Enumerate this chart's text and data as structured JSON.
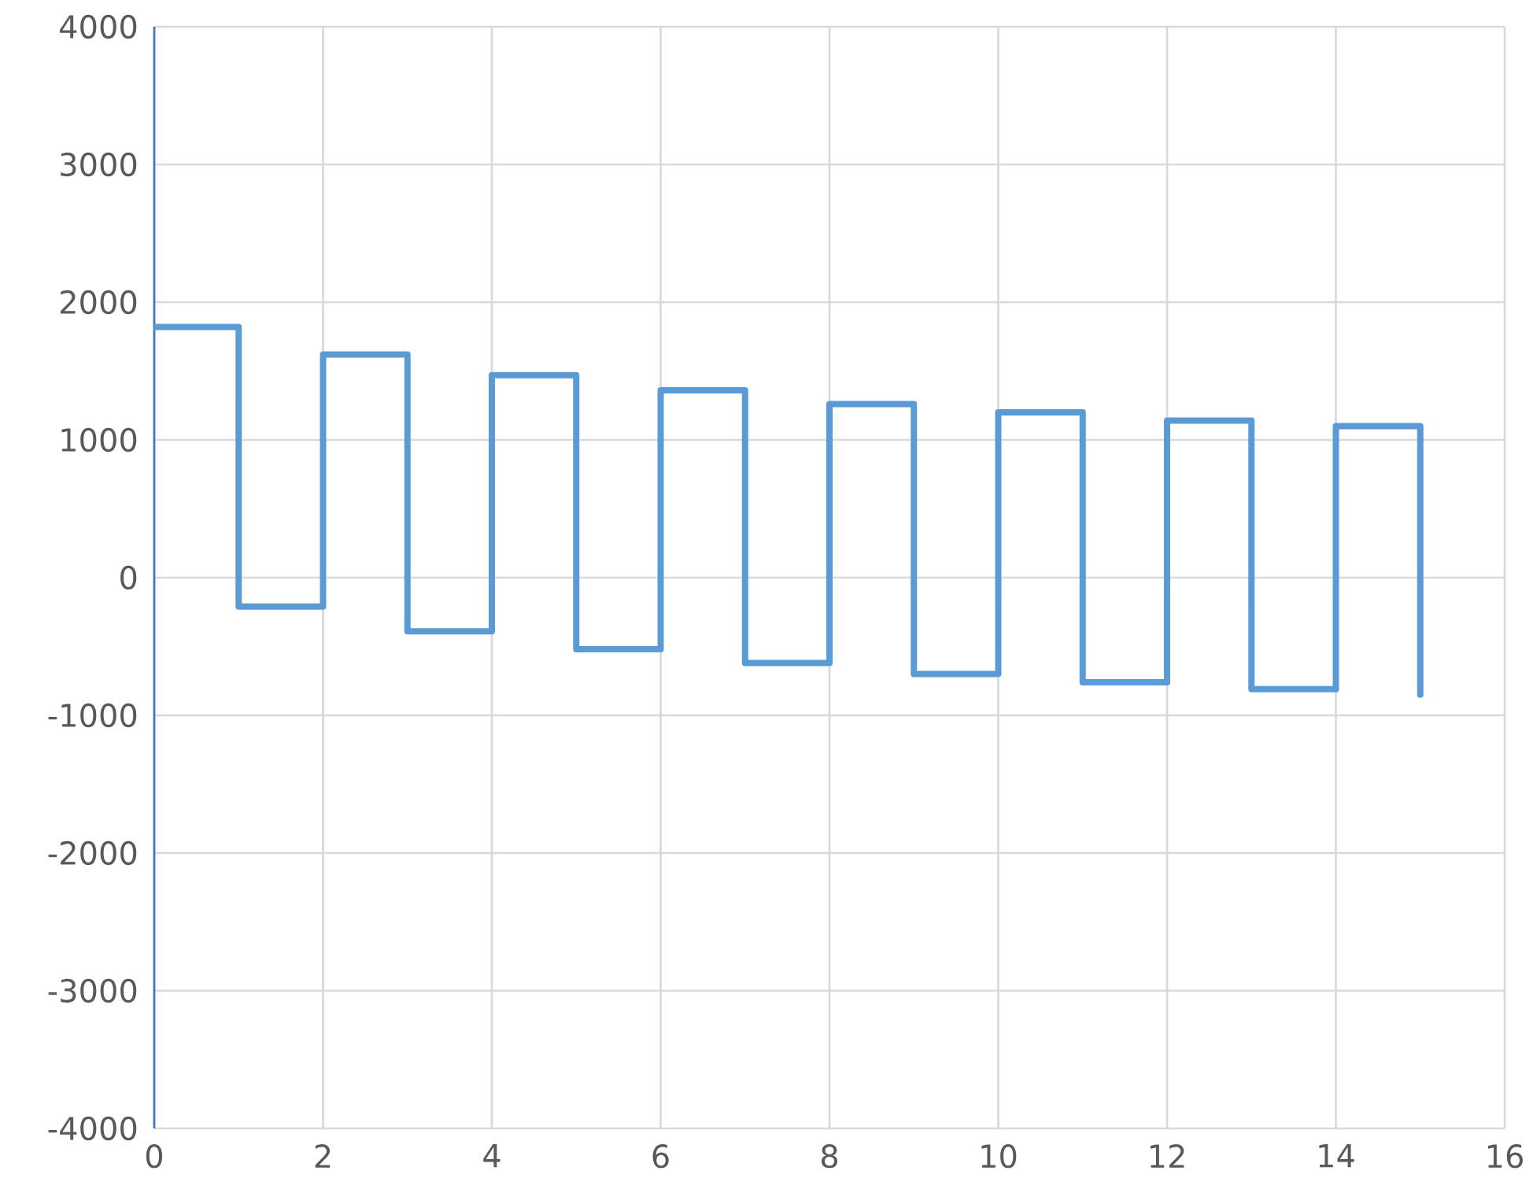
{
  "chart_data": {
    "type": "step",
    "x": [
      0,
      1,
      2,
      3,
      4,
      5,
      6,
      7,
      8,
      9,
      10,
      11,
      12,
      13,
      14,
      15
    ],
    "series": [
      {
        "color": "#5b9bd5",
        "values": [
          1820,
          -210,
          1620,
          -390,
          1470,
          -520,
          1360,
          -620,
          1260,
          -700,
          1200,
          -760,
          1140,
          -810,
          1100,
          -850
        ]
      }
    ],
    "xlim": [
      0,
      16
    ],
    "xticks": [
      0,
      2,
      4,
      6,
      8,
      10,
      12,
      14,
      16
    ],
    "ylim": [
      -4000,
      4000
    ],
    "yticks": [
      -4000,
      -3000,
      -2000,
      -1000,
      0,
      1000,
      2000,
      3000,
      4000
    ],
    "grid": true,
    "marker": "none",
    "line_style": "solid"
  }
}
